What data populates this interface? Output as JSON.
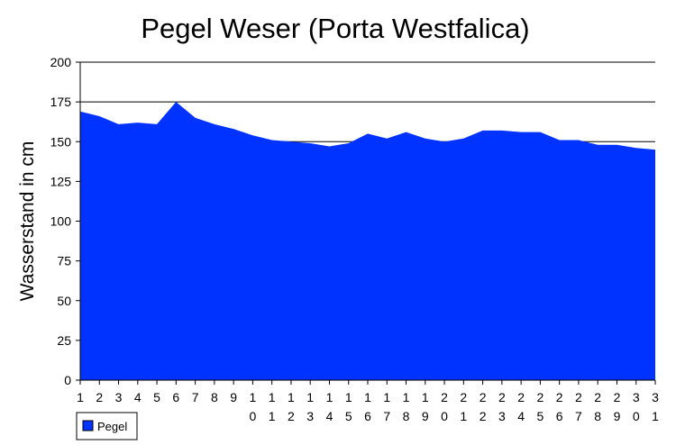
{
  "chart_data": {
    "type": "area",
    "title": "Pegel Weser (Porta Westfalica)",
    "xlabel": "",
    "ylabel": "Wasserstand in cm",
    "categories": [
      "1",
      "2",
      "3",
      "4",
      "5",
      "6",
      "7",
      "8",
      "9",
      "10",
      "11",
      "12",
      "13",
      "14",
      "15",
      "16",
      "17",
      "18",
      "19",
      "20",
      "21",
      "22",
      "23",
      "24",
      "25",
      "26",
      "27",
      "28",
      "29",
      "30",
      "31"
    ],
    "series": [
      {
        "name": "Pegel",
        "color": "#0033ff",
        "values": [
          169,
          166,
          161,
          162,
          161,
          175,
          165,
          161,
          158,
          154,
          151,
          150,
          149,
          147,
          149,
          155,
          152,
          156,
          152,
          150,
          152,
          157,
          157,
          156,
          156,
          151,
          151,
          148,
          148,
          146,
          145
        ]
      }
    ],
    "ylim": [
      0,
      200
    ],
    "yticks": [
      0,
      25,
      50,
      75,
      100,
      125,
      150,
      175,
      200
    ],
    "gridlines": [
      150,
      175,
      200
    ],
    "grid": true,
    "legend_position": "bottom-left"
  }
}
